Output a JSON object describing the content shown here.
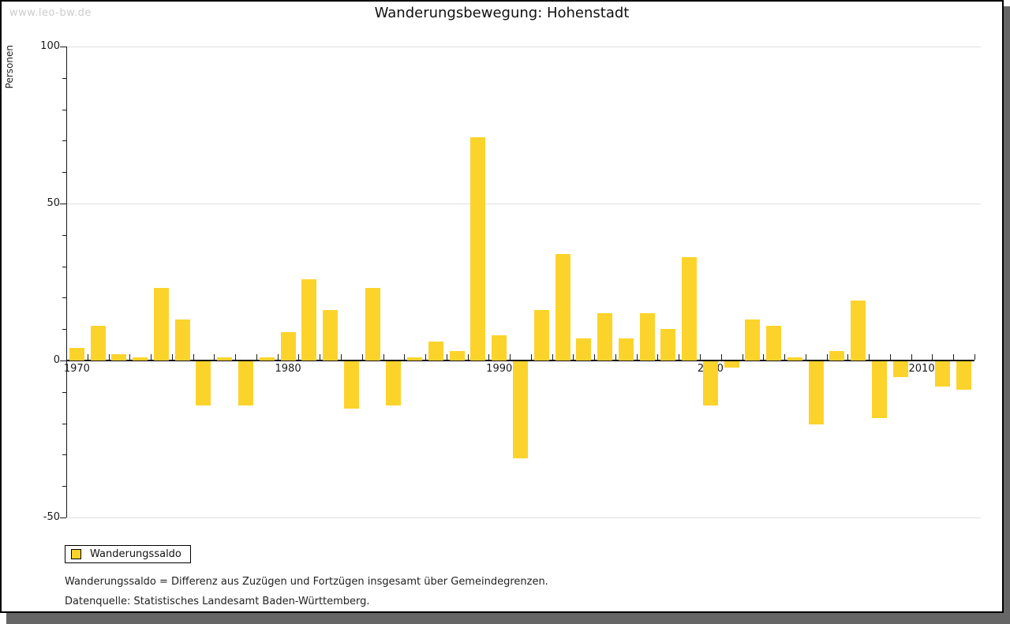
{
  "watermark": "www.leo-bw.de",
  "title": "Wanderungsbewegung: Hohenstadt",
  "legend": {
    "label": "Wanderungssaldo",
    "swatch_color": "#FCD32B"
  },
  "footnotes": [
    "Wanderungssaldo = Differenz aus Zuzügen und Fortzügen insgesamt über Gemeindegrenzen.",
    "Datenquelle: Statistisches Landesamt Baden-Württemberg."
  ],
  "chart_data": {
    "type": "bar",
    "title": "Wanderungsbewegung: Hohenstadt",
    "xlabel": "",
    "ylabel": "Personen",
    "ylim": [
      -50,
      100
    ],
    "ytick_minor_step": 10,
    "yticks_labeled": [
      100,
      50,
      0,
      -50
    ],
    "gridline_values": [
      100,
      50,
      -50
    ],
    "xticks_labeled": [
      1970,
      1980,
      1990,
      2000,
      2010
    ],
    "grid": true,
    "legend_position": "bottom-left",
    "series_name": "Wanderungssaldo",
    "bar_color": "#FCD32B",
    "years": [
      1970,
      1971,
      1972,
      1973,
      1974,
      1975,
      1976,
      1977,
      1978,
      1979,
      1980,
      1981,
      1982,
      1983,
      1984,
      1985,
      1986,
      1987,
      1988,
      1989,
      1990,
      1991,
      1992,
      1993,
      1994,
      1995,
      1996,
      1997,
      1998,
      1999,
      2000,
      2001,
      2002,
      2003,
      2004,
      2005,
      2006,
      2007,
      2008,
      2009,
      2010,
      2011,
      2012
    ],
    "values": [
      4,
      11,
      2,
      1,
      23,
      13,
      -14,
      1,
      -14,
      1,
      9,
      26,
      16,
      -15,
      23,
      -14,
      1,
      6,
      3,
      71,
      8,
      -31,
      16,
      34,
      7,
      15,
      7,
      15,
      10,
      33,
      -14,
      -2,
      13,
      11,
      1,
      -20,
      3,
      19,
      -18,
      -5,
      0,
      -8,
      -9
    ]
  }
}
